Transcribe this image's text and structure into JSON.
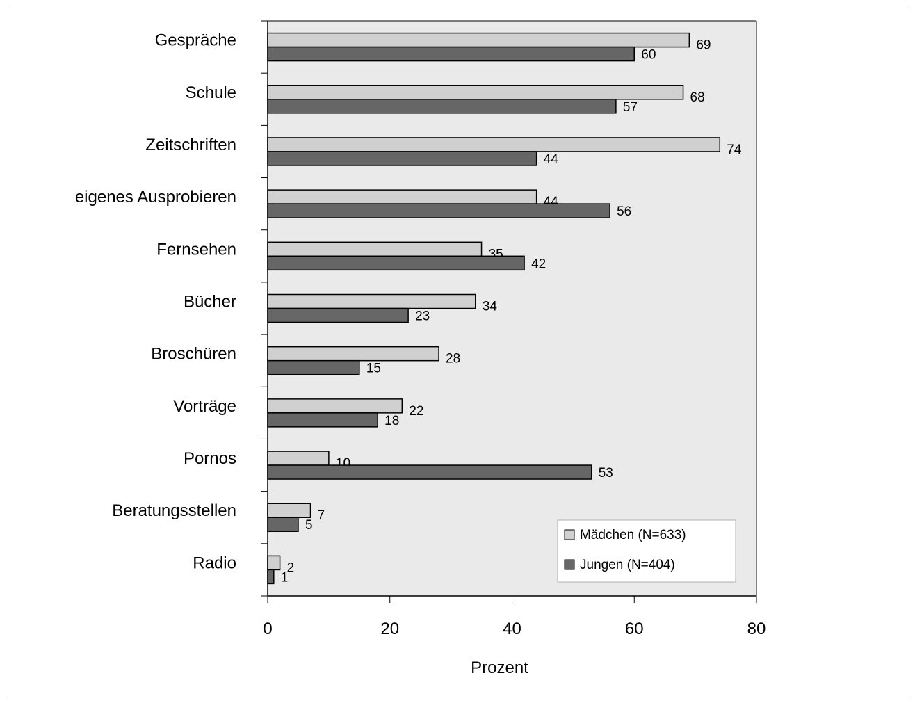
{
  "chart_data": {
    "type": "bar",
    "orientation": "horizontal",
    "categories": [
      "Gespräche",
      "Schule",
      "Zeitschriften",
      "eigenes Ausprobieren",
      "Fernsehen",
      "Bücher",
      "Broschüren",
      "Vorträge",
      "Pornos",
      "Beratungsstellen",
      "Radio"
    ],
    "series": [
      {
        "name": "Mädchen (N=633)",
        "values": [
          69,
          68,
          74,
          44,
          35,
          34,
          28,
          22,
          10,
          7,
          2
        ],
        "color": "#d0d0d0"
      },
      {
        "name": "Jungen (N=404)",
        "values": [
          60,
          57,
          44,
          56,
          42,
          23,
          15,
          18,
          53,
          5,
          1
        ],
        "color": "#666666"
      }
    ],
    "xlabel": "Prozent",
    "ylabel": "",
    "xlim": [
      0,
      80
    ],
    "xticks": [
      "0",
      "20",
      "40",
      "60",
      "80"
    ],
    "grid": false,
    "plot_background": "#eaeaea",
    "legend_position": "bottom-right"
  }
}
